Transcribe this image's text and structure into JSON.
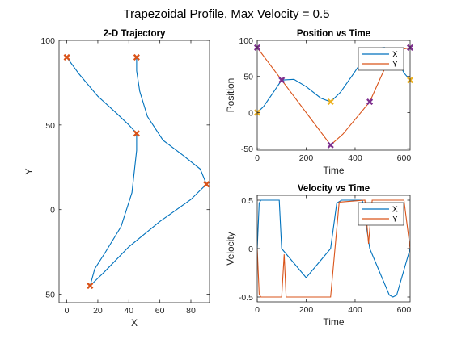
{
  "suptitle": "Trapezoidal Profile, Max Velocity = 0.5",
  "colors": {
    "x": "#0072BD",
    "y": "#D95319",
    "marker_red": "#D95319",
    "marker_yellow": "#EDB120",
    "marker_purple": "#7E2F8E"
  },
  "chart_data": [
    {
      "type": "line",
      "title": "2-D Trajectory",
      "xlabel": "X",
      "ylabel": "Y",
      "xlim": [
        -5,
        92
      ],
      "ylim": [
        -55,
        100
      ],
      "xticks": [
        0,
        20,
        40,
        60,
        80
      ],
      "yticks": [
        -50,
        0,
        50,
        100
      ],
      "grid": false,
      "waypoints": {
        "x": [
          0,
          45,
          45,
          90,
          15
        ],
        "y": [
          90,
          90,
          45,
          15,
          -45
        ],
        "marker": "x"
      },
      "series": [
        {
          "points": [
            [
              0,
              90
            ],
            [
              8,
              80
            ],
            [
              20,
              67
            ],
            [
              32,
              57
            ],
            [
              40,
              50
            ],
            [
              45,
              45
            ],
            [
              45,
              35
            ],
            [
              42,
              10
            ],
            [
              35,
              -10
            ],
            [
              25,
              -25
            ],
            [
              18,
              -35
            ],
            [
              15,
              -45
            ],
            [
              24,
              -37
            ],
            [
              40,
              -22
            ],
            [
              60,
              -7
            ],
            [
              80,
              6
            ],
            [
              90,
              15
            ],
            [
              86,
              24
            ],
            [
              75,
              32
            ],
            [
              62,
              41
            ],
            [
              52,
              55
            ],
            [
              47,
              70
            ],
            [
              45,
              82
            ],
            [
              45,
              90
            ]
          ]
        }
      ]
    },
    {
      "type": "line",
      "title": "Position vs Time",
      "xlabel": "Time",
      "ylabel": "Position",
      "xlim": [
        0,
        625
      ],
      "ylim": [
        -52,
        100
      ],
      "xticks": [
        0,
        200,
        400,
        600
      ],
      "yticks": [
        -50,
        0,
        50,
        100
      ],
      "legend": "top-right",
      "series": [
        {
          "name": "X",
          "points": [
            [
              0,
              0
            ],
            [
              25,
              8
            ],
            [
              60,
              25
            ],
            [
              100,
              45
            ],
            [
              150,
              46
            ],
            [
              200,
              36
            ],
            [
              260,
              20
            ],
            [
              300,
              15
            ],
            [
              340,
              28
            ],
            [
              390,
              52
            ],
            [
              430,
              72
            ],
            [
              470,
              87
            ],
            [
              520,
              90
            ],
            [
              575,
              73
            ],
            [
              600,
              55
            ],
            [
              625,
              45
            ]
          ]
        },
        {
          "name": "Y",
          "points": [
            [
              0,
              90
            ],
            [
              100,
              45
            ],
            [
              300,
              -45
            ],
            [
              350,
              -30
            ],
            [
              460,
              15
            ],
            [
              520,
              60
            ],
            [
              560,
              85
            ],
            [
              625,
              90
            ]
          ]
        }
      ],
      "markers": [
        {
          "color": "yellow",
          "points": [
            [
              0,
              0
            ],
            [
              300,
              15
            ],
            [
              625,
              45
            ]
          ]
        },
        {
          "color": "purple",
          "points": [
            [
              0,
              90
            ],
            [
              100,
              45
            ],
            [
              300,
              -45
            ],
            [
              460,
              15
            ],
            [
              625,
              90
            ]
          ]
        }
      ]
    },
    {
      "type": "line",
      "title": "Velocity vs Time",
      "xlabel": "Time",
      "ylabel": "Velocity",
      "xlim": [
        0,
        625
      ],
      "ylim": [
        -0.55,
        0.55
      ],
      "xticks": [
        0,
        200,
        400,
        600
      ],
      "yticks": [
        -0.5,
        0,
        0.5
      ],
      "legend": "top-right",
      "series": [
        {
          "name": "X",
          "points": [
            [
              0,
              0
            ],
            [
              8,
              0.47
            ],
            [
              15,
              0.5
            ],
            [
              65,
              0.5
            ],
            [
              75,
              0.5
            ],
            [
              90,
              0.5
            ],
            [
              100,
              0
            ],
            [
              200,
              -0.3
            ],
            [
              300,
              0
            ],
            [
              325,
              0.47
            ],
            [
              345,
              0.5
            ],
            [
              430,
              0.5
            ],
            [
              460,
              0
            ],
            [
              540,
              -0.48
            ],
            [
              555,
              -0.5
            ],
            [
              570,
              -0.48
            ],
            [
              625,
              0
            ]
          ]
        },
        {
          "name": "Y",
          "points": [
            [
              0,
              0
            ],
            [
              8,
              -0.47
            ],
            [
              15,
              -0.5
            ],
            [
              95,
              -0.5
            ],
            [
              100,
              -0.5
            ],
            [
              110,
              -0.06
            ],
            [
              118,
              -0.5
            ],
            [
              285,
              -0.5
            ],
            [
              300,
              -0.5
            ],
            [
              335,
              0.48
            ],
            [
              440,
              0.5
            ],
            [
              455,
              0.05
            ],
            [
              470,
              0.5
            ],
            [
              600,
              0.5
            ],
            [
              625,
              0
            ]
          ]
        }
      ]
    }
  ]
}
